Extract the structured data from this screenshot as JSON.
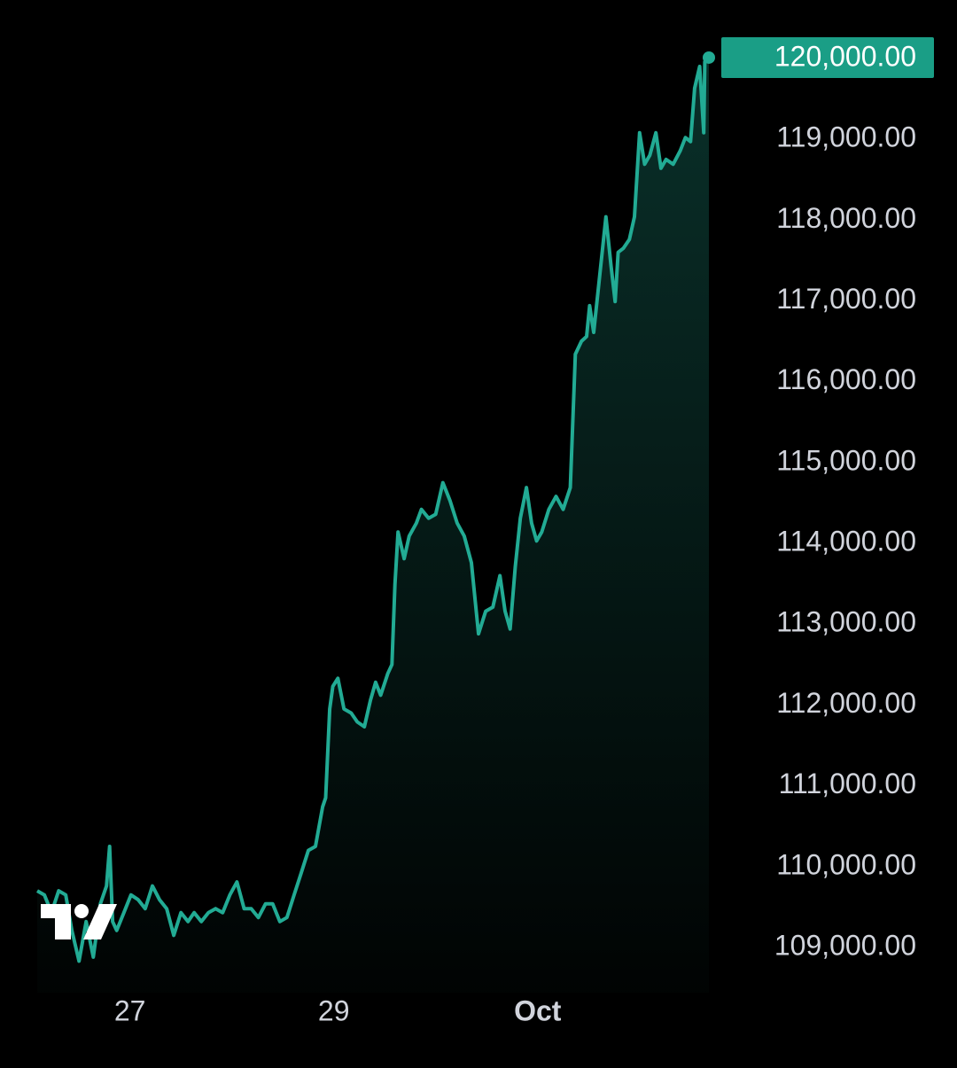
{
  "chart_data": {
    "type": "area",
    "color": "#22ab94",
    "x": [
      26.09,
      26.16,
      26.23,
      26.3,
      26.37,
      26.43,
      26.5,
      26.57,
      26.64,
      26.71,
      26.77,
      26.8,
      26.83,
      26.87,
      26.94,
      27.01,
      27.08,
      27.15,
      27.22,
      27.29,
      27.36,
      27.43,
      27.5,
      27.57,
      27.63,
      27.7,
      27.77,
      27.84,
      27.91,
      27.98,
      28.05,
      28.12,
      28.19,
      28.26,
      28.33,
      28.4,
      28.47,
      28.54,
      28.61,
      28.68,
      28.75,
      28.82,
      28.89,
      28.92,
      28.96,
      28.99,
      29.04,
      29.1,
      29.17,
      29.23,
      29.3,
      29.36,
      29.41,
      29.46,
      29.53,
      29.57,
      29.6,
      29.63,
      29.69,
      29.74,
      29.81,
      29.86,
      29.93,
      30.0,
      30.07,
      30.14,
      30.21,
      30.28,
      30.35,
      30.42,
      30.49,
      30.56,
      30.63,
      30.68,
      30.73,
      30.78,
      30.83,
      30.89,
      30.94,
      30.99,
      31.04,
      31.11,
      31.18,
      31.25,
      31.32,
      31.37,
      31.43,
      31.48,
      31.51,
      31.55,
      31.6,
      31.67,
      31.72,
      31.76,
      31.79,
      31.84,
      31.9,
      31.95,
      32.0,
      32.05,
      32.1,
      32.16,
      32.21,
      32.26,
      32.33,
      32.4,
      32.45,
      32.5,
      32.54,
      32.59,
      32.63,
      32.64,
      32.68
    ],
    "values": [
      109690,
      109640,
      109420,
      109690,
      109640,
      109200,
      108820,
      109310,
      108870,
      109530,
      109750,
      110240,
      109310,
      109200,
      109420,
      109640,
      109580,
      109470,
      109750,
      109580,
      109470,
      109140,
      109420,
      109310,
      109420,
      109310,
      109420,
      109470,
      109420,
      109640,
      109800,
      109470,
      109470,
      109360,
      109530,
      109530,
      109310,
      109360,
      109640,
      109910,
      110190,
      110240,
      110730,
      110840,
      111940,
      112220,
      112320,
      111940,
      111890,
      111780,
      111720,
      112050,
      112270,
      112110,
      112380,
      112490,
      113480,
      114130,
      113800,
      114080,
      114240,
      114410,
      114300,
      114350,
      114740,
      114520,
      114240,
      114080,
      113750,
      112870,
      113150,
      113200,
      113590,
      113150,
      112930,
      113700,
      114300,
      114680,
      114240,
      114020,
      114130,
      114410,
      114570,
      114410,
      114680,
      116330,
      116490,
      116550,
      116930,
      116600,
      117200,
      118030,
      117420,
      116980,
      117590,
      117640,
      117750,
      118030,
      119070,
      118680,
      118790,
      119070,
      118630,
      118740,
      118680,
      118850,
      119010,
      118960,
      119620,
      119890,
      119070,
      119950,
      120000
    ],
    "xlim": [
      26.09,
      32.68
    ],
    "xticks": [
      {
        "value": 27,
        "label": "27"
      },
      {
        "value": 29,
        "label": "29"
      },
      {
        "value": 31,
        "label": "Oct"
      }
    ],
    "ylim": [
      108600,
      120300
    ],
    "yticks": [
      {
        "value": 109000,
        "label": "109,000.00"
      },
      {
        "value": 110000,
        "label": "110,000.00"
      },
      {
        "value": 111000,
        "label": "111,000.00"
      },
      {
        "value": 112000,
        "label": "112,000.00"
      },
      {
        "value": 113000,
        "label": "113,000.00"
      },
      {
        "value": 114000,
        "label": "114,000.00"
      },
      {
        "value": 115000,
        "label": "115,000.00"
      },
      {
        "value": 116000,
        "label": "116,000.00"
      },
      {
        "value": 117000,
        "label": "117,000.00"
      },
      {
        "value": 118000,
        "label": "118,000.00"
      },
      {
        "value": 119000,
        "label": "119,000.00"
      },
      {
        "value": 120000,
        "label": "120,000.00"
      }
    ],
    "grid": false
  }
}
